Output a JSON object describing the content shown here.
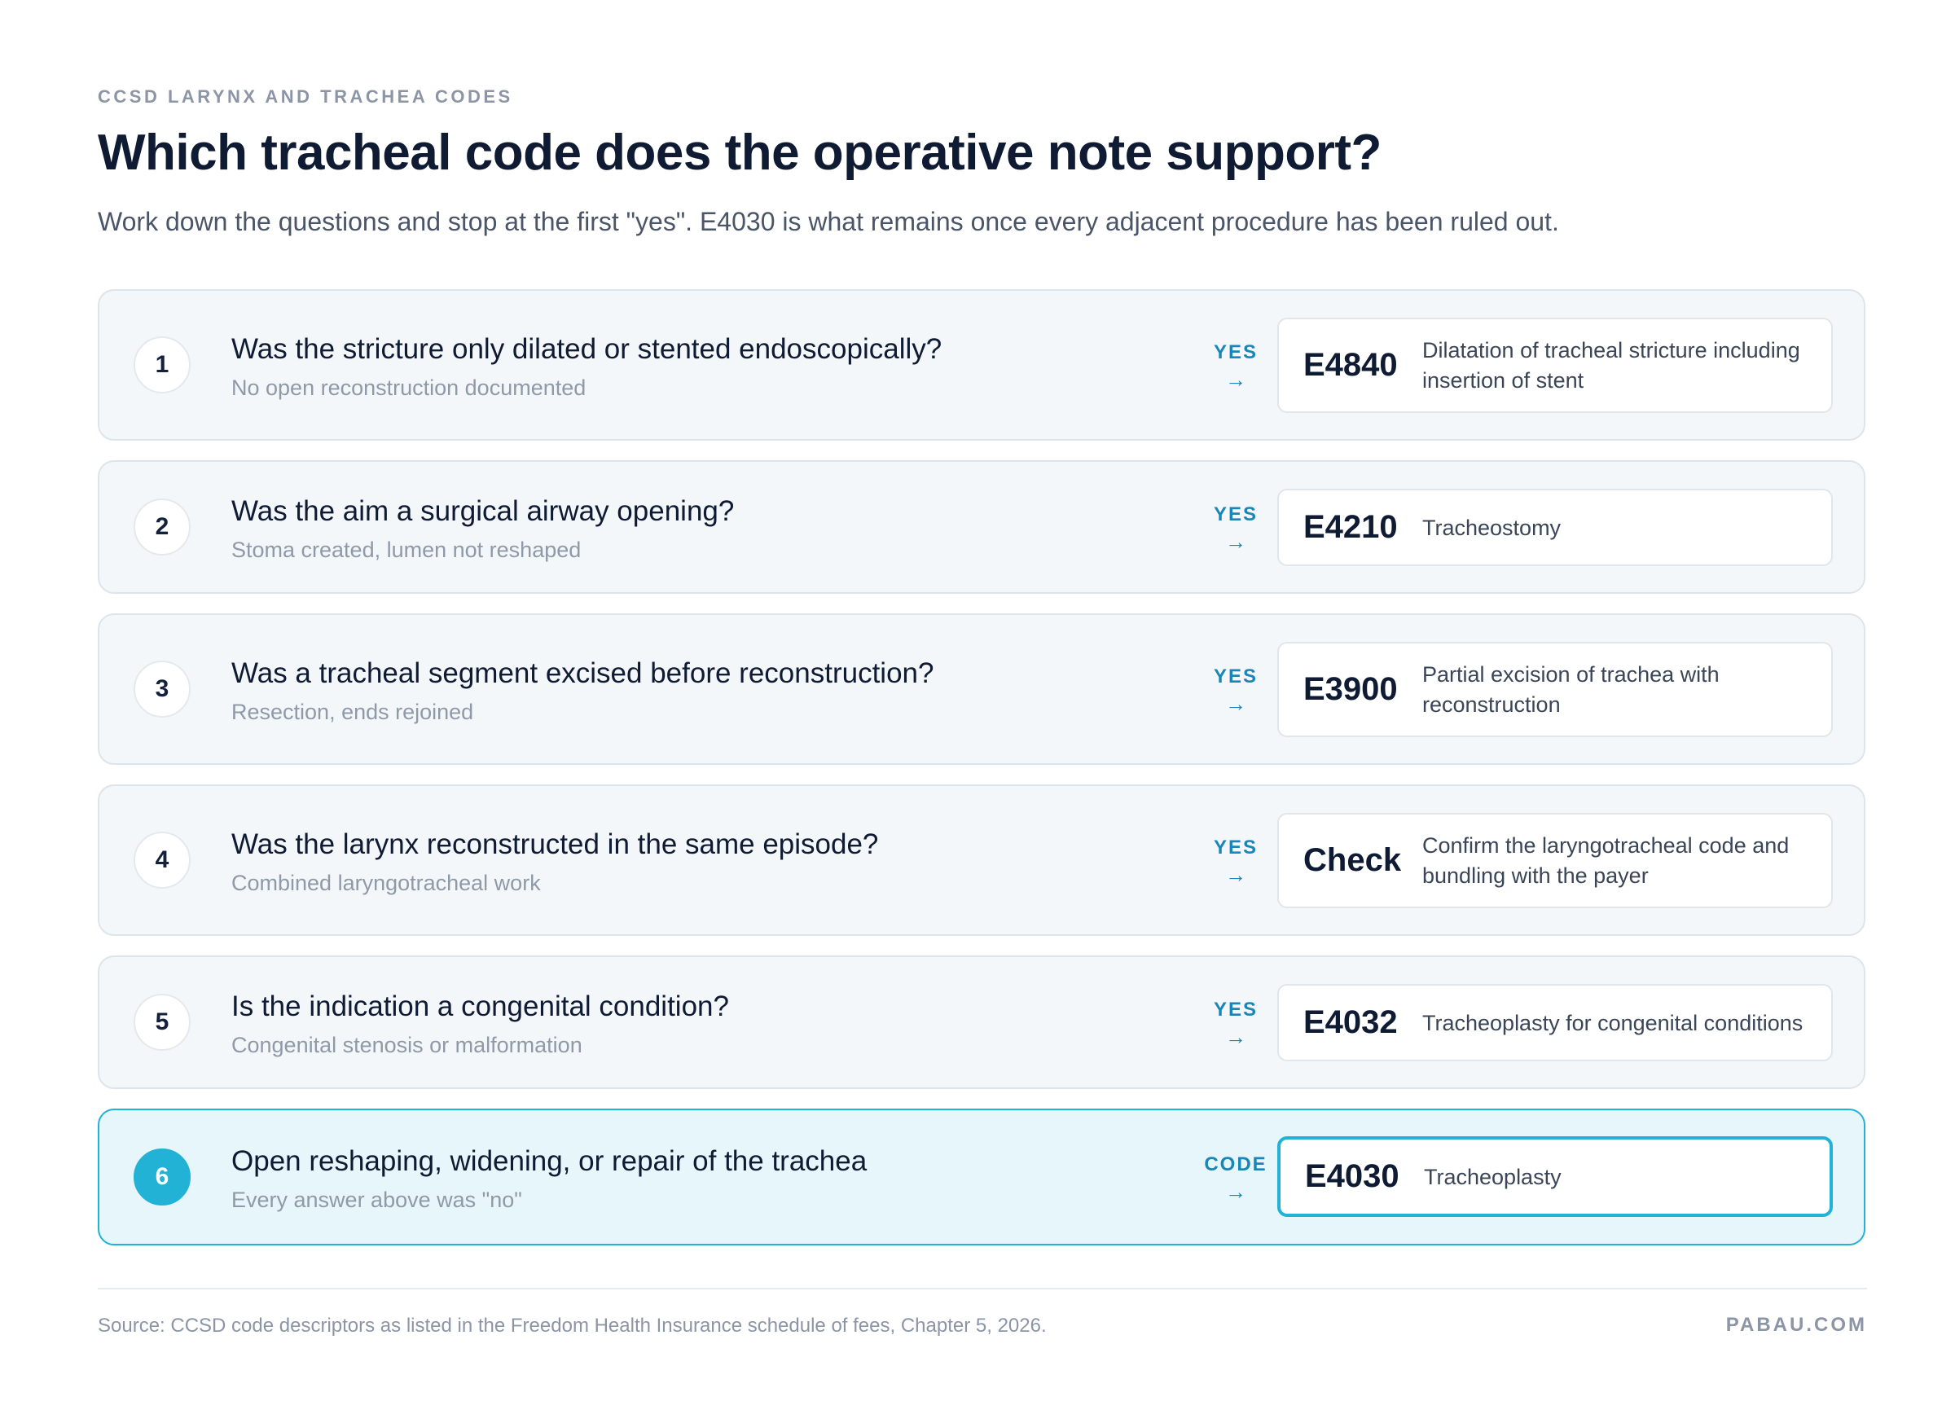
{
  "header": {
    "eyebrow": "CCSD LARYNX AND TRACHEA CODES",
    "title": "Which tracheal code does the operative note support?",
    "subtitle": "Work down the questions and stop at the first \"yes\". E4030 is what remains once every adjacent procedure has been ruled out."
  },
  "steps": [
    {
      "number": "1",
      "question": "Was the stricture only dilated or stented endoscopically?",
      "hint": "No open reconstruction documented",
      "branch": "YES",
      "arrow": "→",
      "code": "E4840",
      "description": "Dilatation of tracheal stricture including insertion of stent"
    },
    {
      "number": "2",
      "question": "Was the aim a surgical airway opening?",
      "hint": "Stoma created, lumen not reshaped",
      "branch": "YES",
      "arrow": "→",
      "code": "E4210",
      "description": "Tracheostomy"
    },
    {
      "number": "3",
      "question": "Was a tracheal segment excised before reconstruction?",
      "hint": "Resection, ends rejoined",
      "branch": "YES",
      "arrow": "→",
      "code": "E3900",
      "description": "Partial excision of trachea with reconstruction"
    },
    {
      "number": "4",
      "question": "Was the larynx reconstructed in the same episode?",
      "hint": "Combined laryngotracheal work",
      "branch": "YES",
      "arrow": "→",
      "code": "Check",
      "description": "Confirm the laryngotracheal code and bundling with the payer"
    },
    {
      "number": "5",
      "question": "Is the indication a congenital condition?",
      "hint": "Congenital stenosis or malformation",
      "branch": "YES",
      "arrow": "→",
      "code": "E4032",
      "description": "Tracheoplasty for congenital conditions"
    },
    {
      "number": "6",
      "question": "Open reshaping, widening, or repair of the trachea",
      "hint": "Every answer above was \"no\"",
      "branch": "CODE",
      "arrow": "→",
      "code": "E4030",
      "description": "Tracheoplasty"
    }
  ],
  "footer": {
    "source": "Source: CCSD code descriptors as listed in the Freedom Health Insurance schedule of fees, Chapter 5, 2026.",
    "brand": "PABAU.COM"
  },
  "colors": {
    "accent": "#21b2d6",
    "branch_label": "#1a86b8",
    "card_background": "#f3f7fa",
    "final_card_background": "#e6f6fa"
  }
}
